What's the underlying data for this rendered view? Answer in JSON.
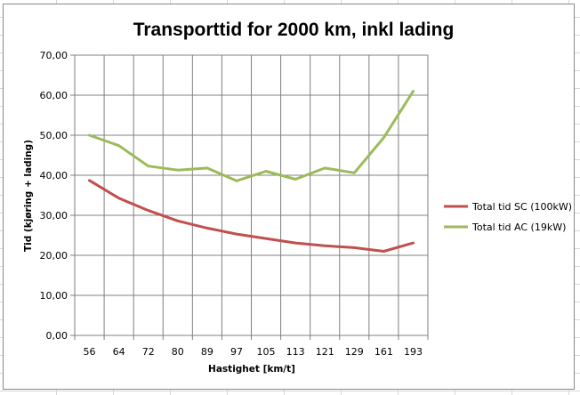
{
  "chart_data": {
    "type": "line",
    "title": "Transporttid for 2000 km, inkl lading",
    "xlabel": "Hastighet [km/t]",
    "ylabel": "Tid (kjøring + lading)",
    "categories": [
      "56",
      "64",
      "72",
      "80",
      "89",
      "97",
      "105",
      "113",
      "121",
      "129",
      "161",
      "193"
    ],
    "ylim": [
      0,
      70
    ],
    "yticks": [
      "0,00",
      "10,00",
      "20,00",
      "30,00",
      "40,00",
      "50,00",
      "60,00",
      "70,00"
    ],
    "grid": true,
    "legend_position": "right",
    "series": [
      {
        "name": "Total tid SC (100kW)",
        "color": "#c0504d",
        "values": [
          38.7,
          34.3,
          31.2,
          28.6,
          26.8,
          25.3,
          24.2,
          23.1,
          22.4,
          21.9,
          21.0,
          23.1
        ]
      },
      {
        "name": "Total tid AC (19kW)",
        "color": "#9bbb59",
        "values": [
          50.0,
          47.4,
          42.3,
          41.3,
          41.8,
          38.6,
          41.0,
          39.0,
          41.8,
          40.6,
          49.4,
          61.0
        ]
      }
    ]
  }
}
